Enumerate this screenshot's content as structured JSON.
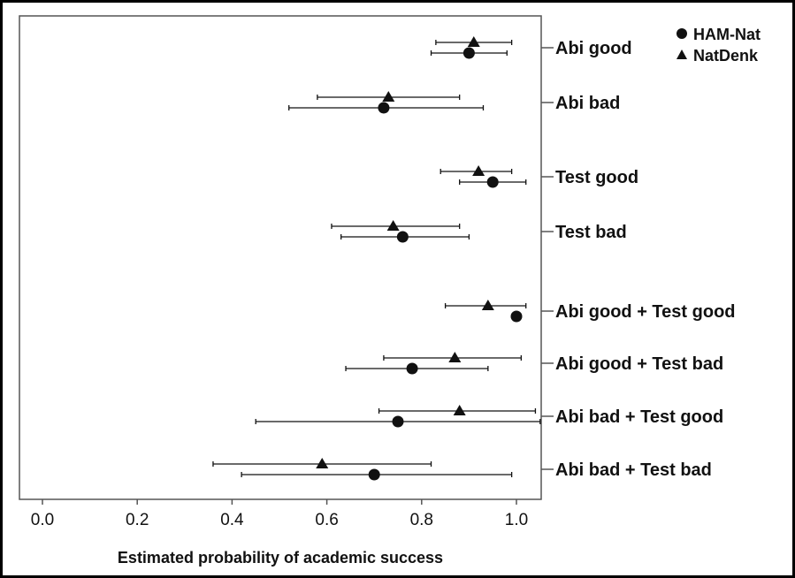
{
  "chart_data": {
    "type": "scatter",
    "xlabel": "Estimated probability of academic success",
    "xlim": [
      -0.05,
      1.05
    ],
    "x_ticks": [
      "0.0",
      "0.2",
      "0.4",
      "0.6",
      "0.8",
      "1.0"
    ],
    "categories": [
      "Abi good",
      "Abi bad",
      "Test good",
      "Test bad",
      "Abi good + Test good",
      "Abi good + Test bad",
      "Abi bad + Test good",
      "Abi bad + Test bad"
    ],
    "category_axis_side": "right",
    "legend": {
      "position": "top-right"
    },
    "series": [
      {
        "name": "HAM-Nat",
        "marker": "circle",
        "values": [
          0.9,
          0.72,
          0.95,
          0.76,
          1.0,
          0.78,
          0.75,
          0.7
        ],
        "ci_lower": [
          0.82,
          0.52,
          0.88,
          0.63,
          null,
          0.64,
          0.45,
          0.42
        ],
        "ci_upper": [
          0.98,
          0.93,
          1.02,
          0.9,
          null,
          0.94,
          1.05,
          0.99
        ]
      },
      {
        "name": "NatDenk",
        "marker": "triangle",
        "values": [
          0.91,
          0.73,
          0.92,
          0.74,
          0.94,
          0.87,
          0.88,
          0.59
        ],
        "ci_lower": [
          0.83,
          0.58,
          0.84,
          0.61,
          0.85,
          0.72,
          0.71,
          0.36
        ],
        "ci_upper": [
          0.99,
          0.88,
          0.99,
          0.88,
          1.02,
          1.01,
          1.04,
          0.82
        ]
      }
    ],
    "colors": {
      "marks": "#111111",
      "frame": "#555555",
      "background": "#ffffff"
    }
  }
}
